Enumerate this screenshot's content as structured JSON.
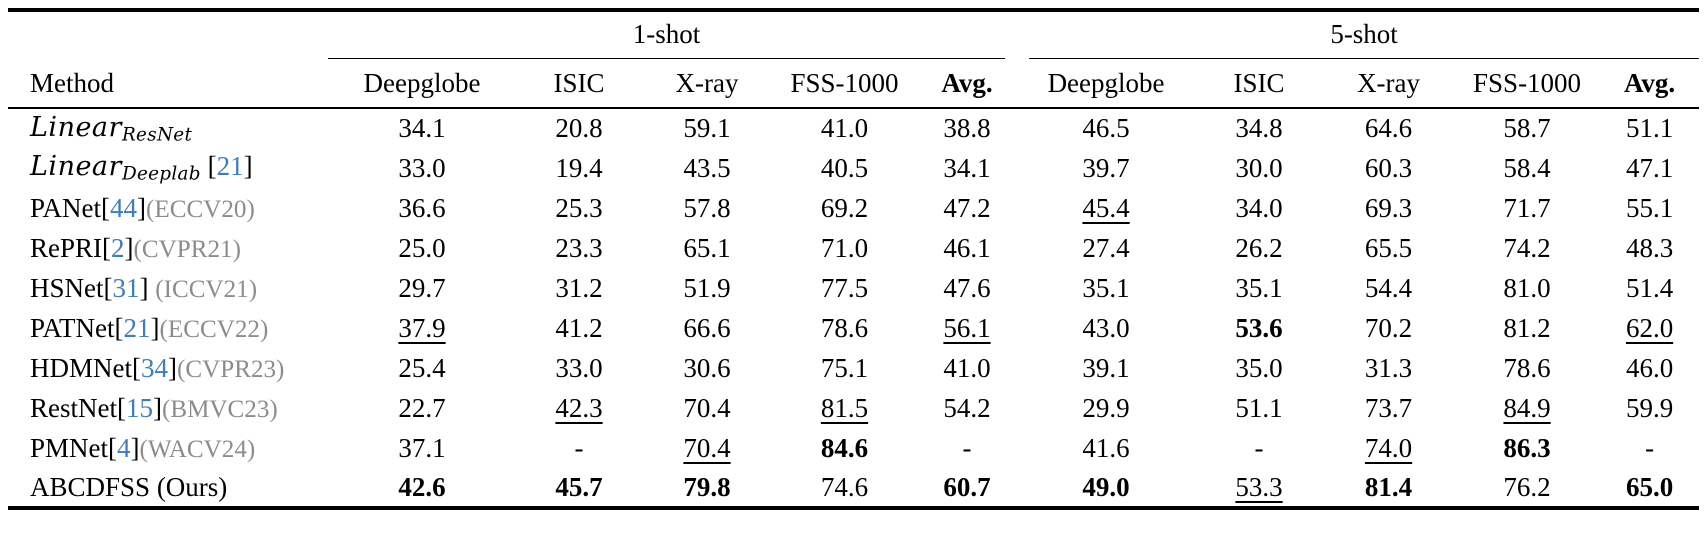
{
  "colors": {
    "citation_blue": "#3e7dbd",
    "venue_gray": "#8c8c8c",
    "text_black": "#000000",
    "background": "#ffffff"
  },
  "table": {
    "method_header": "Method",
    "groups": [
      {
        "label": "1-shot"
      },
      {
        "label": "5-shot"
      }
    ],
    "columns": [
      "Deepglobe",
      "ISIC",
      "X-ray",
      "FSS-1000",
      "Avg."
    ],
    "rows": [
      {
        "method": [
          {
            "text": "Linear",
            "style": "math"
          },
          {
            "text": "ResNet",
            "style": "mathsub"
          }
        ],
        "values": [
          {
            "v": "34.1",
            "s": ""
          },
          {
            "v": "20.8",
            "s": ""
          },
          {
            "v": "59.1",
            "s": ""
          },
          {
            "v": "41.0",
            "s": ""
          },
          {
            "v": "38.8",
            "s": ""
          },
          {
            "v": "46.5",
            "s": ""
          },
          {
            "v": "34.8",
            "s": ""
          },
          {
            "v": "64.6",
            "s": ""
          },
          {
            "v": "58.7",
            "s": ""
          },
          {
            "v": "51.1",
            "s": ""
          }
        ]
      },
      {
        "method": [
          {
            "text": "Linear",
            "style": "math"
          },
          {
            "text": "Deeplab",
            "style": "mathsub"
          },
          {
            "text": " [",
            "style": "plain"
          },
          {
            "text": "21",
            "style": "cite"
          },
          {
            "text": "]",
            "style": "plain"
          }
        ],
        "values": [
          {
            "v": "33.0",
            "s": ""
          },
          {
            "v": "19.4",
            "s": ""
          },
          {
            "v": "43.5",
            "s": ""
          },
          {
            "v": "40.5",
            "s": ""
          },
          {
            "v": "34.1",
            "s": ""
          },
          {
            "v": "39.7",
            "s": ""
          },
          {
            "v": "30.0",
            "s": ""
          },
          {
            "v": "60.3",
            "s": ""
          },
          {
            "v": "58.4",
            "s": ""
          },
          {
            "v": "47.1",
            "s": ""
          }
        ]
      },
      {
        "method": [
          {
            "text": "PANet[",
            "style": "plain"
          },
          {
            "text": "44",
            "style": "cite"
          },
          {
            "text": "]",
            "style": "plain"
          },
          {
            "text": "(ECCV20)",
            "style": "venue"
          }
        ],
        "values": [
          {
            "v": "36.6",
            "s": ""
          },
          {
            "v": "25.3",
            "s": ""
          },
          {
            "v": "57.8",
            "s": ""
          },
          {
            "v": "69.2",
            "s": ""
          },
          {
            "v": "47.2",
            "s": ""
          },
          {
            "v": "45.4",
            "s": "u"
          },
          {
            "v": "34.0",
            "s": ""
          },
          {
            "v": "69.3",
            "s": ""
          },
          {
            "v": "71.7",
            "s": ""
          },
          {
            "v": "55.1",
            "s": ""
          }
        ]
      },
      {
        "method": [
          {
            "text": "RePRI[",
            "style": "plain"
          },
          {
            "text": "2",
            "style": "cite"
          },
          {
            "text": "]",
            "style": "plain"
          },
          {
            "text": "(CVPR21)",
            "style": "venue"
          }
        ],
        "values": [
          {
            "v": "25.0",
            "s": ""
          },
          {
            "v": "23.3",
            "s": ""
          },
          {
            "v": "65.1",
            "s": ""
          },
          {
            "v": "71.0",
            "s": ""
          },
          {
            "v": "46.1",
            "s": ""
          },
          {
            "v": "27.4",
            "s": ""
          },
          {
            "v": "26.2",
            "s": ""
          },
          {
            "v": "65.5",
            "s": ""
          },
          {
            "v": "74.2",
            "s": ""
          },
          {
            "v": "48.3",
            "s": ""
          }
        ]
      },
      {
        "method": [
          {
            "text": "HSNet[",
            "style": "plain"
          },
          {
            "text": "31",
            "style": "cite"
          },
          {
            "text": "] ",
            "style": "plain"
          },
          {
            "text": "(ICCV21)",
            "style": "venue"
          }
        ],
        "values": [
          {
            "v": "29.7",
            "s": ""
          },
          {
            "v": "31.2",
            "s": ""
          },
          {
            "v": "51.9",
            "s": ""
          },
          {
            "v": "77.5",
            "s": ""
          },
          {
            "v": "47.6",
            "s": ""
          },
          {
            "v": "35.1",
            "s": ""
          },
          {
            "v": "35.1",
            "s": ""
          },
          {
            "v": "54.4",
            "s": ""
          },
          {
            "v": "81.0",
            "s": ""
          },
          {
            "v": "51.4",
            "s": ""
          }
        ]
      },
      {
        "method": [
          {
            "text": "PATNet[",
            "style": "plain"
          },
          {
            "text": "21",
            "style": "cite"
          },
          {
            "text": "]",
            "style": "plain"
          },
          {
            "text": "(ECCV22)",
            "style": "venue"
          }
        ],
        "values": [
          {
            "v": "37.9",
            "s": "u"
          },
          {
            "v": "41.2",
            "s": ""
          },
          {
            "v": "66.6",
            "s": ""
          },
          {
            "v": "78.6",
            "s": ""
          },
          {
            "v": "56.1",
            "s": "u"
          },
          {
            "v": "43.0",
            "s": ""
          },
          {
            "v": "53.6",
            "s": "b"
          },
          {
            "v": "70.2",
            "s": ""
          },
          {
            "v": "81.2",
            "s": ""
          },
          {
            "v": "62.0",
            "s": "u"
          }
        ]
      },
      {
        "method": [
          {
            "text": "HDMNet[",
            "style": "plain"
          },
          {
            "text": "34",
            "style": "cite"
          },
          {
            "text": "]",
            "style": "plain"
          },
          {
            "text": "(CVPR23)",
            "style": "venue"
          }
        ],
        "values": [
          {
            "v": "25.4",
            "s": ""
          },
          {
            "v": "33.0",
            "s": ""
          },
          {
            "v": "30.6",
            "s": ""
          },
          {
            "v": "75.1",
            "s": ""
          },
          {
            "v": "41.0",
            "s": ""
          },
          {
            "v": "39.1",
            "s": ""
          },
          {
            "v": "35.0",
            "s": ""
          },
          {
            "v": "31.3",
            "s": ""
          },
          {
            "v": "78.6",
            "s": ""
          },
          {
            "v": "46.0",
            "s": ""
          }
        ]
      },
      {
        "method": [
          {
            "text": "RestNet[",
            "style": "plain"
          },
          {
            "text": "15",
            "style": "cite"
          },
          {
            "text": "]",
            "style": "plain"
          },
          {
            "text": "(BMVC23)",
            "style": "venue"
          }
        ],
        "values": [
          {
            "v": "22.7",
            "s": ""
          },
          {
            "v": "42.3",
            "s": "u"
          },
          {
            "v": "70.4",
            "s": ""
          },
          {
            "v": "81.5",
            "s": "u"
          },
          {
            "v": "54.2",
            "s": ""
          },
          {
            "v": "29.9",
            "s": ""
          },
          {
            "v": "51.1",
            "s": ""
          },
          {
            "v": "73.7",
            "s": ""
          },
          {
            "v": "84.9",
            "s": "u"
          },
          {
            "v": "59.9",
            "s": ""
          }
        ]
      },
      {
        "method": [
          {
            "text": "PMNet[",
            "style": "plain"
          },
          {
            "text": "4",
            "style": "cite"
          },
          {
            "text": "]",
            "style": "plain"
          },
          {
            "text": "(WACV24)",
            "style": "venue"
          }
        ],
        "values": [
          {
            "v": "37.1",
            "s": ""
          },
          {
            "v": "-",
            "s": ""
          },
          {
            "v": "70.4",
            "s": "u"
          },
          {
            "v": "84.6",
            "s": "b"
          },
          {
            "v": "-",
            "s": ""
          },
          {
            "v": "41.6",
            "s": ""
          },
          {
            "v": "-",
            "s": ""
          },
          {
            "v": "74.0",
            "s": "u"
          },
          {
            "v": "86.3",
            "s": "b"
          },
          {
            "v": "-",
            "s": ""
          }
        ]
      },
      {
        "method": [
          {
            "text": "ABCDFSS (Ours)",
            "style": "plain"
          }
        ],
        "values": [
          {
            "v": "42.6",
            "s": "b"
          },
          {
            "v": "45.7",
            "s": "b"
          },
          {
            "v": "79.8",
            "s": "b"
          },
          {
            "v": "74.6",
            "s": ""
          },
          {
            "v": "60.7",
            "s": "b"
          },
          {
            "v": "49.0",
            "s": "b"
          },
          {
            "v": "53.3",
            "s": "u"
          },
          {
            "v": "81.4",
            "s": "b"
          },
          {
            "v": "76.2",
            "s": ""
          },
          {
            "v": "65.0",
            "s": "b"
          }
        ]
      }
    ]
  }
}
